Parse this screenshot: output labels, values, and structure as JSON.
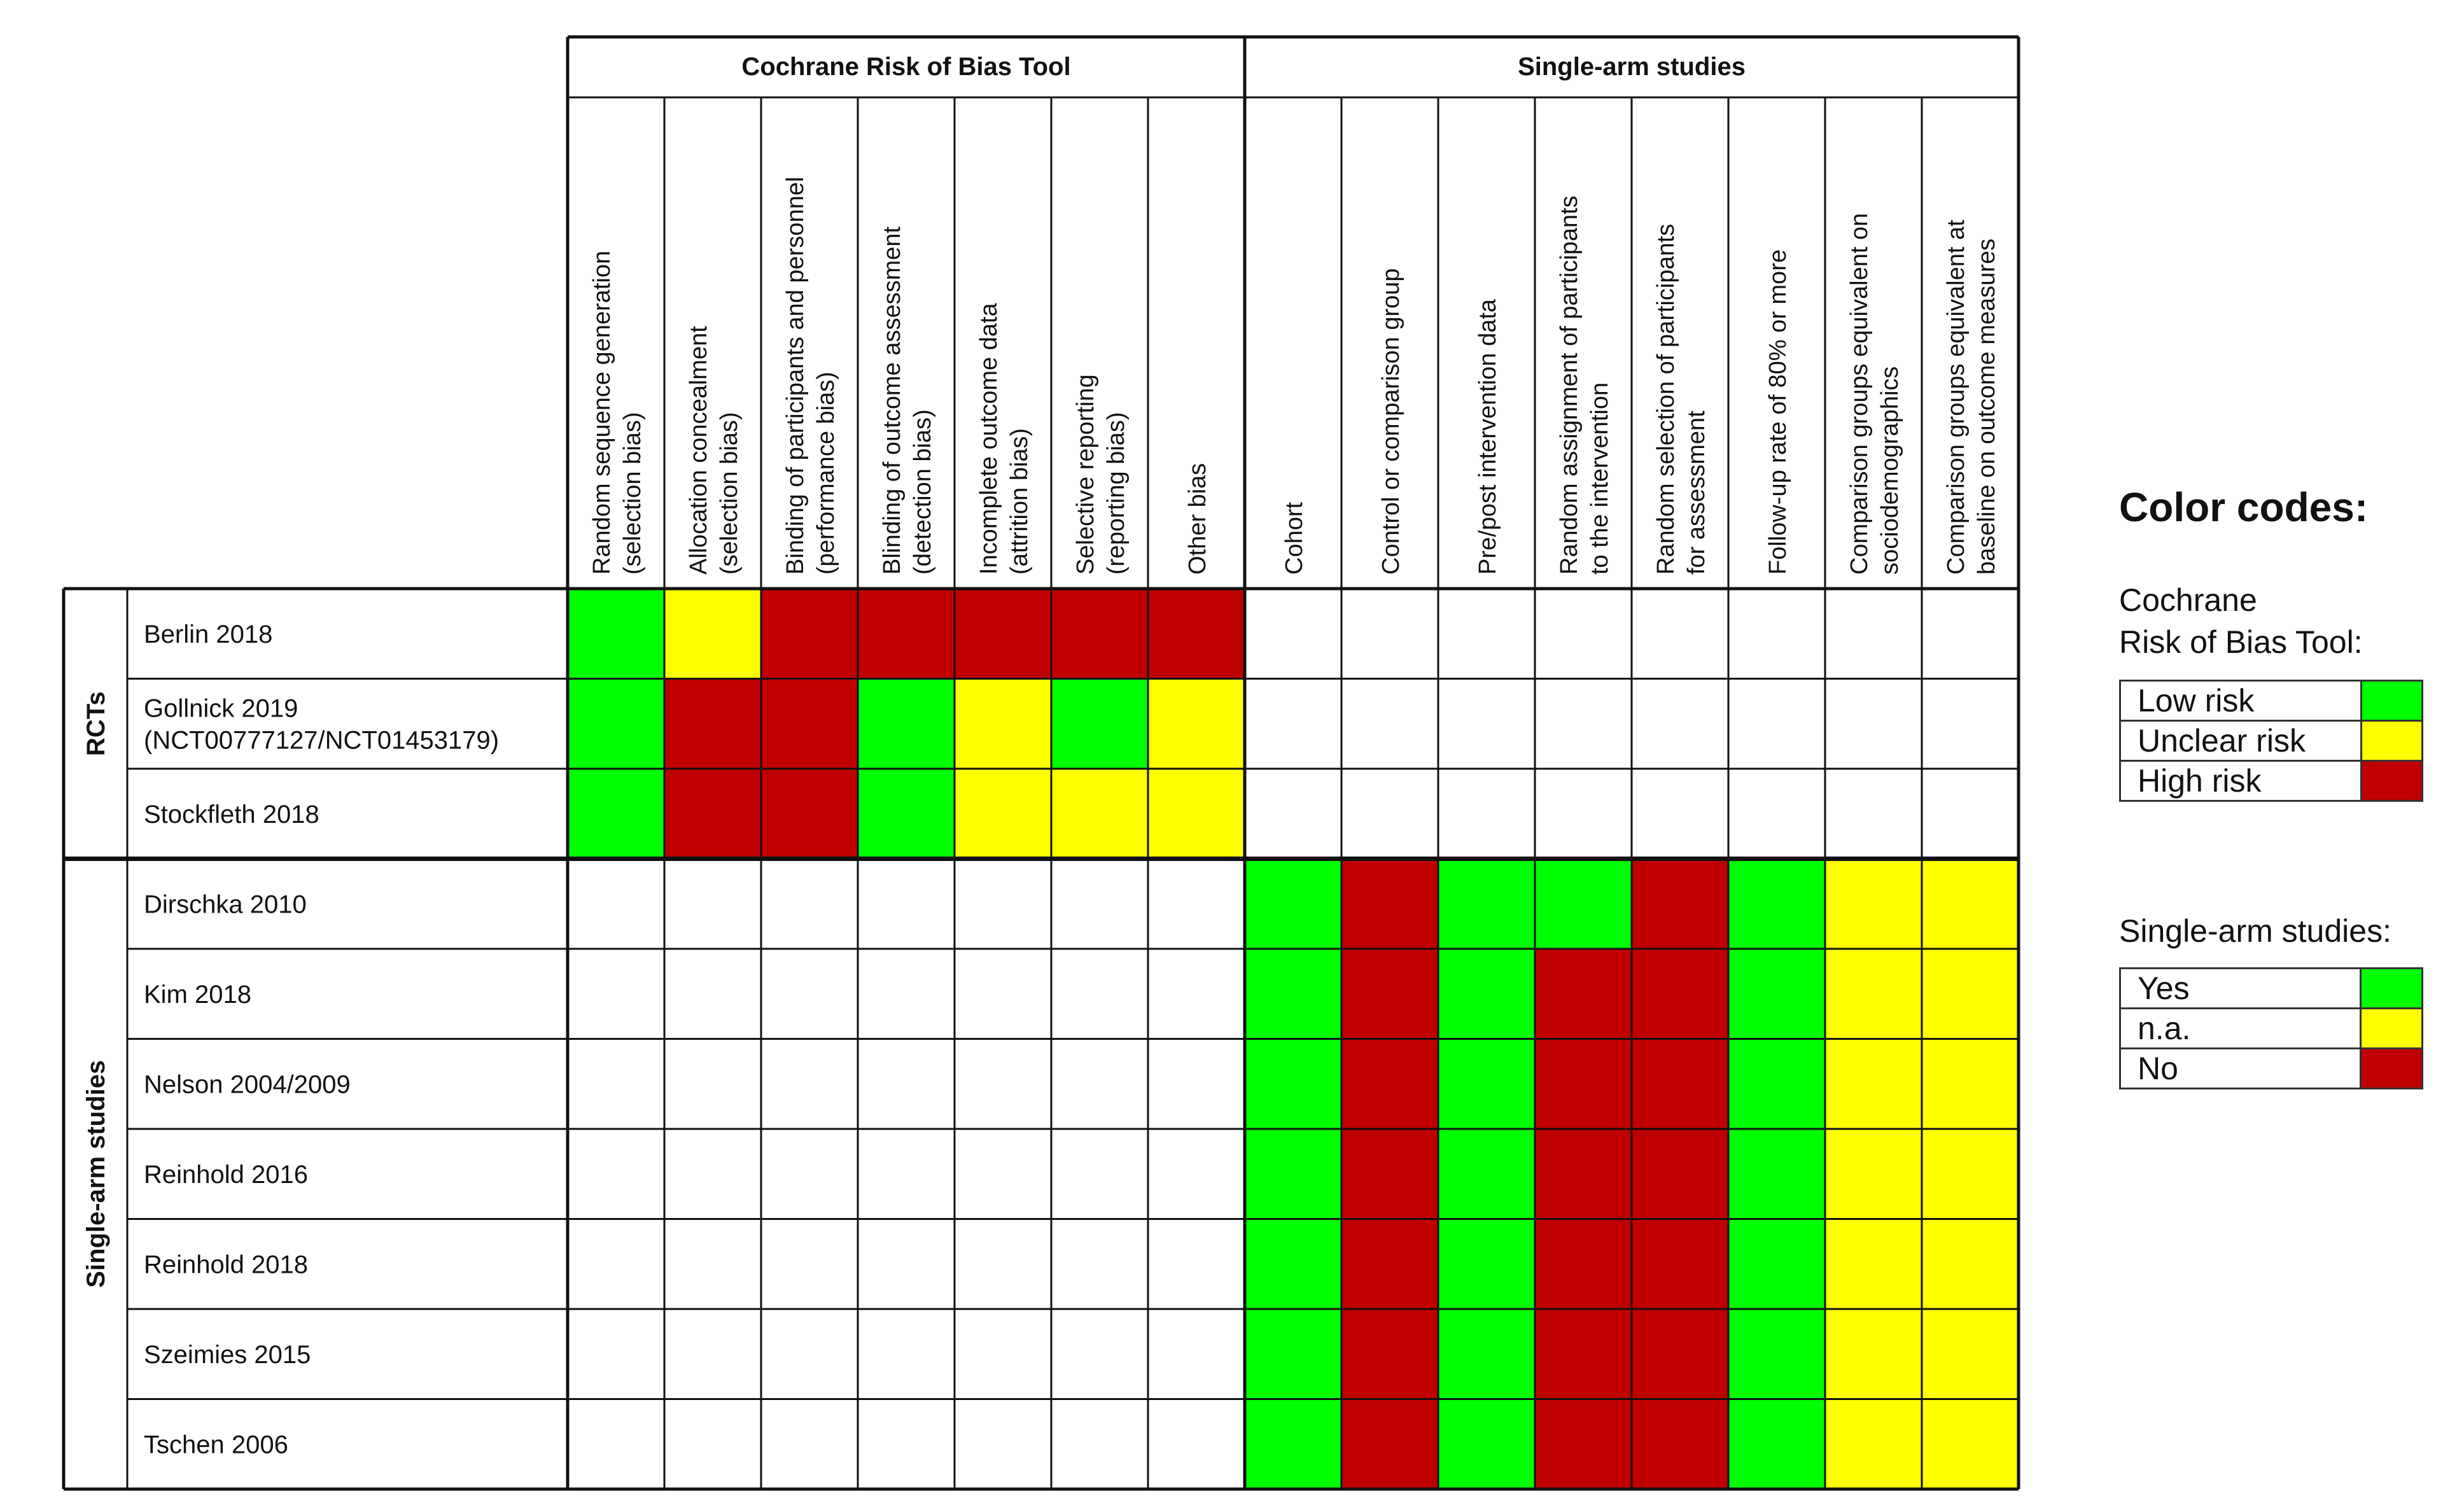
{
  "colors": {
    "green": "#00ff00",
    "yellow": "#ffff00",
    "red": "#c00000",
    "white": "#ffffff",
    "line": "#111111"
  },
  "chart_data": {
    "type": "table",
    "header_groups": [
      "Cochrane Risk of Bias Tool",
      "Single-arm studies"
    ],
    "columns": [
      [
        "Random sequence generation",
        "(selection bias)"
      ],
      [
        "Allocation concealment",
        "(selection bias)"
      ],
      [
        "Binding of participants and personnel",
        "(performance bias)"
      ],
      [
        "Blinding of outcome assessment",
        "(detection bias)"
      ],
      [
        "Incomplete outcome data",
        "(attrition bias)"
      ],
      [
        "Selective reporting",
        "(reporting bias)"
      ],
      [
        "Other bias"
      ],
      [
        "Cohort"
      ],
      [
        "Control or comparison group"
      ],
      [
        "Pre/post intervention data"
      ],
      [
        "Random assignment of participants",
        "to the intervention"
      ],
      [
        "Random selection of participants",
        "for assessment"
      ],
      [
        "Follow-up rate of 80% or more"
      ],
      [
        "Comparison groups equivalent on",
        "sociodemographics"
      ],
      [
        "Comparison groups equivalent at",
        "baseline on outcome measures"
      ]
    ],
    "row_groups": [
      {
        "label": "RCTs",
        "rows": [
          {
            "study": [
              "Berlin 2018"
            ],
            "cells": [
              "G",
              "Y",
              "R",
              "R",
              "R",
              "R",
              "R",
              "",
              "",
              "",
              "",
              "",
              "",
              "",
              ""
            ]
          },
          {
            "study": [
              "Gollnick 2019",
              "(NCT00777127/NCT01453179)"
            ],
            "cells": [
              "G",
              "R",
              "R",
              "G",
              "Y",
              "G",
              "Y",
              "",
              "",
              "",
              "",
              "",
              "",
              "",
              ""
            ]
          },
          {
            "study": [
              "Stockfleth 2018"
            ],
            "cells": [
              "G",
              "R",
              "R",
              "G",
              "Y",
              "Y",
              "Y",
              "",
              "",
              "",
              "",
              "",
              "",
              "",
              ""
            ]
          }
        ]
      },
      {
        "label": "Single-arm studies",
        "rows": [
          {
            "study": [
              "Dirschka 2010"
            ],
            "cells": [
              "",
              "",
              "",
              "",
              "",
              "",
              "",
              "G",
              "R",
              "G",
              "G",
              "R",
              "G",
              "Y",
              "Y"
            ]
          },
          {
            "study": [
              "Kim 2018"
            ],
            "cells": [
              "",
              "",
              "",
              "",
              "",
              "",
              "",
              "G",
              "R",
              "G",
              "R",
              "R",
              "G",
              "Y",
              "Y"
            ]
          },
          {
            "study": [
              "Nelson 2004/2009"
            ],
            "cells": [
              "",
              "",
              "",
              "",
              "",
              "",
              "",
              "G",
              "R",
              "G",
              "R",
              "R",
              "G",
              "Y",
              "Y"
            ]
          },
          {
            "study": [
              "Reinhold 2016"
            ],
            "cells": [
              "",
              "",
              "",
              "",
              "",
              "",
              "",
              "G",
              "R",
              "G",
              "R",
              "R",
              "G",
              "Y",
              "Y"
            ]
          },
          {
            "study": [
              "Reinhold 2018"
            ],
            "cells": [
              "",
              "",
              "",
              "",
              "",
              "",
              "",
              "G",
              "R",
              "G",
              "R",
              "R",
              "G",
              "Y",
              "Y"
            ]
          },
          {
            "study": [
              "Szeimies 2015"
            ],
            "cells": [
              "",
              "",
              "",
              "",
              "",
              "",
              "",
              "G",
              "R",
              "G",
              "R",
              "R",
              "G",
              "Y",
              "Y"
            ]
          },
          {
            "study": [
              "Tschen 2006"
            ],
            "cells": [
              "",
              "",
              "",
              "",
              "",
              "",
              "",
              "G",
              "R",
              "G",
              "R",
              "R",
              "G",
              "Y",
              "Y"
            ]
          }
        ]
      }
    ]
  },
  "legend": {
    "title": "Color codes:",
    "cochrane": {
      "title_line1": "Cochrane",
      "title_line2": "Risk of Bias Tool:",
      "items": [
        {
          "label": "Low risk",
          "color": "#00ff00"
        },
        {
          "label": "Unclear risk",
          "color": "#ffff00"
        },
        {
          "label": "High risk",
          "color": "#c00000"
        }
      ]
    },
    "single_arm": {
      "title": "Single-arm studies:",
      "items": [
        {
          "label": "Yes",
          "color": "#00ff00"
        },
        {
          "label": "n.a.",
          "color": "#ffff00"
        },
        {
          "label": "No",
          "color": "#c00000"
        }
      ]
    }
  }
}
